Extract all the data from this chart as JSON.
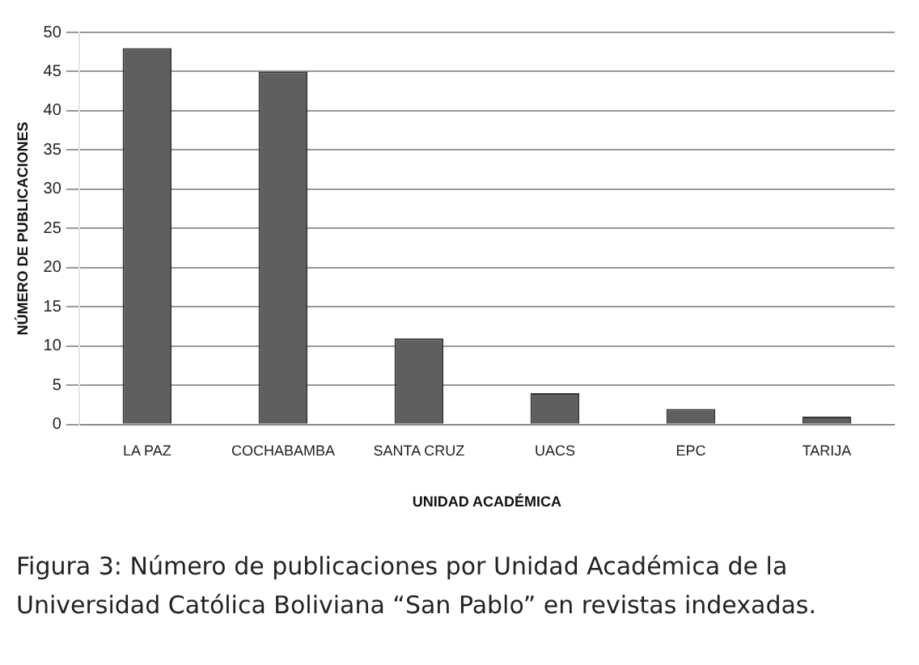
{
  "chart_data": {
    "type": "bar",
    "xlabel": "UNIDAD ACADÉMICA",
    "ylabel": "NÚMERO DE PUBLICACIONES",
    "categories": [
      "LA PAZ",
      "COCHABAMBA",
      "SANTA CRUZ",
      "UACS",
      "EPC",
      "TARIJA"
    ],
    "values": [
      48,
      45,
      11,
      4,
      2,
      1
    ],
    "color": "#5f5f5f",
    "ylim": [
      0,
      50
    ],
    "yticks": [
      0,
      5,
      10,
      15,
      20,
      25,
      30,
      35,
      40,
      45,
      50
    ],
    "grid": "y",
    "annotations": [
      "Figura 3: Número de publicaciones por Unidad Académica de la Universidad Católica Boliviana “San Pablo” en revistas indexadas."
    ]
  }
}
